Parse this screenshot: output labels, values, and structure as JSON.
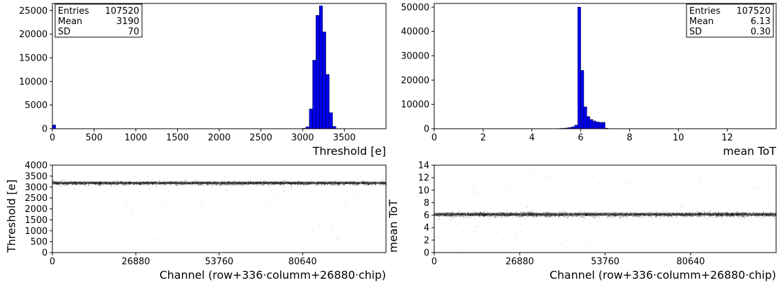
{
  "chart_data": [
    {
      "id": "thr-hist",
      "type": "bar",
      "xlabel": "Threshold [e]",
      "ylabel": "",
      "xlim": [
        0,
        4000
      ],
      "ylim": [
        0,
        26500
      ],
      "xticks": [
        "0",
        "500",
        "1000",
        "1500",
        "2000",
        "2500",
        "3000",
        "3500"
      ],
      "yticks": [
        "0",
        "5000",
        "10000",
        "15000",
        "20000",
        "25000"
      ],
      "bar_color": "#0000ee",
      "bin_width": 40,
      "bins": [
        {
          "x": 0,
          "y": 800
        },
        {
          "x": 2960,
          "y": 20
        },
        {
          "x": 3000,
          "y": 100
        },
        {
          "x": 3040,
          "y": 400
        },
        {
          "x": 3080,
          "y": 4200
        },
        {
          "x": 3120,
          "y": 14500
        },
        {
          "x": 3160,
          "y": 24000
        },
        {
          "x": 3200,
          "y": 26000
        },
        {
          "x": 3240,
          "y": 20500
        },
        {
          "x": 3280,
          "y": 11500
        },
        {
          "x": 3320,
          "y": 3400
        },
        {
          "x": 3360,
          "y": 500
        },
        {
          "x": 3400,
          "y": 50
        }
      ],
      "stats": {
        "position": "top-left",
        "rows": [
          [
            "Entries",
            "107520"
          ],
          [
            "Mean",
            "3190"
          ],
          [
            "SD",
            "70"
          ]
        ]
      }
    },
    {
      "id": "tot-hist",
      "type": "bar",
      "xlabel": "mean ToT",
      "ylabel": "",
      "xlim": [
        0,
        14
      ],
      "ylim": [
        0,
        51500
      ],
      "xticks": [
        "0",
        "2",
        "4",
        "6",
        "8",
        "10",
        "12"
      ],
      "yticks": [
        "0",
        "10000",
        "20000",
        "30000",
        "40000",
        "50000"
      ],
      "bar_color": "#0000ee",
      "bin_width": 0.125,
      "bins": [
        {
          "x": 4.875,
          "y": 50
        },
        {
          "x": 5.0,
          "y": 100
        },
        {
          "x": 5.125,
          "y": 150
        },
        {
          "x": 5.25,
          "y": 200
        },
        {
          "x": 5.375,
          "y": 300
        },
        {
          "x": 5.5,
          "y": 500
        },
        {
          "x": 5.625,
          "y": 800
        },
        {
          "x": 5.75,
          "y": 1500
        },
        {
          "x": 5.875,
          "y": 50000
        },
        {
          "x": 6.0,
          "y": 24000
        },
        {
          "x": 6.125,
          "y": 9000
        },
        {
          "x": 6.25,
          "y": 5000
        },
        {
          "x": 6.375,
          "y": 3800
        },
        {
          "x": 6.5,
          "y": 3200
        },
        {
          "x": 6.625,
          "y": 2800
        },
        {
          "x": 6.75,
          "y": 2600
        },
        {
          "x": 6.875,
          "y": 2600
        },
        {
          "x": 7.0,
          "y": 200
        },
        {
          "x": 7.125,
          "y": 50
        }
      ],
      "stats": {
        "position": "top-right",
        "rows": [
          [
            "Entries",
            "107520"
          ],
          [
            "Mean",
            "6.13"
          ],
          [
            "SD",
            "0.30"
          ]
        ]
      }
    },
    {
      "id": "thr-scatter",
      "type": "scatter",
      "xlabel": "Channel (row+336·columm+26880·chip)",
      "ylabel": "Threshold [e]",
      "xlim": [
        0,
        107520
      ],
      "ylim": [
        0,
        4000
      ],
      "xticks": [
        "0",
        "26880",
        "53760",
        "80640"
      ],
      "yticks": [
        "0",
        "500",
        "1000",
        "1500",
        "2000",
        "2500",
        "3000",
        "3500",
        "4000"
      ],
      "band": {
        "mean": 3190,
        "sd": 70
      },
      "entries": 107520
    },
    {
      "id": "tot-scatter",
      "type": "scatter",
      "xlabel": "Channel (row+336·columm+26880·chip)",
      "ylabel": "mean ToT",
      "xlim": [
        0,
        107520
      ],
      "ylim": [
        0,
        14
      ],
      "xticks": [
        "0",
        "26880",
        "53760",
        "80640"
      ],
      "yticks": [
        "0",
        "2",
        "4",
        "6",
        "8",
        "10",
        "12",
        "14"
      ],
      "band": {
        "mean": 6.13,
        "sd": 0.3
      },
      "entries": 107520
    }
  ]
}
